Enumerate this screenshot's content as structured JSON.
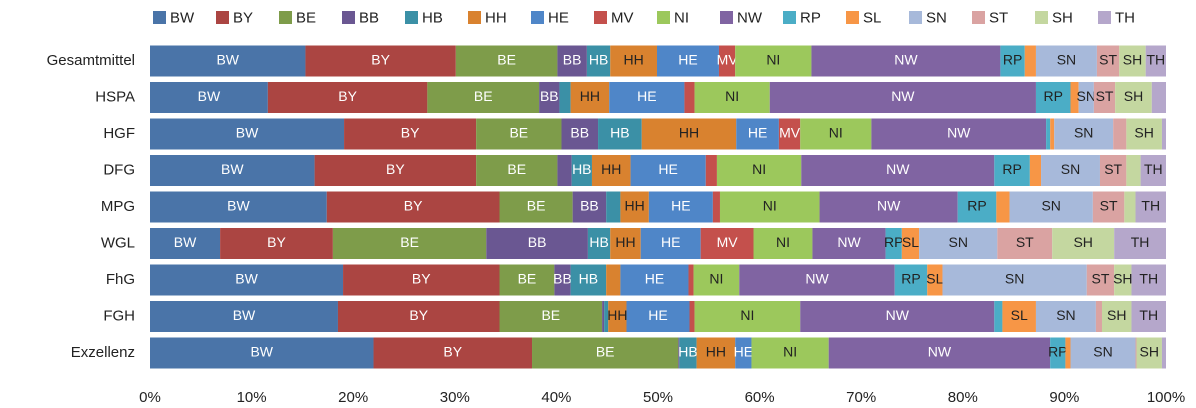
{
  "chart_data": {
    "type": "stacked_bar_horizontal",
    "categories": [
      "Gesamtmittel",
      "HSPA",
      "HGF",
      "DFG",
      "MPG",
      "WGL",
      "FhG",
      "FGH",
      "Exzellenz"
    ],
    "series": [
      {
        "name": "BW",
        "color": "#4a74a8",
        "values": [
          15.3,
          11.6,
          19.1,
          16.2,
          17.4,
          6.9,
          19.0,
          18.5,
          22.0
        ]
      },
      {
        "name": "BY",
        "color": "#ab4542",
        "values": [
          14.8,
          15.7,
          13.0,
          15.9,
          17.0,
          11.1,
          15.4,
          15.9,
          15.6
        ]
      },
      {
        "name": "BE",
        "color": "#7e9c4a",
        "values": [
          10.0,
          11.0,
          8.4,
          8.0,
          7.2,
          15.1,
          5.4,
          10.1,
          14.4
        ]
      },
      {
        "name": "BB",
        "color": "#6a5792",
        "values": [
          2.9,
          2.0,
          3.6,
          1.4,
          3.3,
          10.0,
          1.6,
          0.2,
          0.1
        ]
      },
      {
        "name": "HB",
        "color": "#3b90a6",
        "values": [
          2.3,
          1.1,
          4.3,
          2.0,
          1.4,
          2.2,
          3.5,
          0.4,
          1.7
        ]
      },
      {
        "name": "HH",
        "color": "#d9822f",
        "values": [
          4.6,
          3.8,
          9.3,
          3.8,
          2.8,
          3.0,
          1.4,
          1.8,
          3.8
        ]
      },
      {
        "name": "HE",
        "color": "#4f86c8",
        "values": [
          6.1,
          7.4,
          4.2,
          7.4,
          6.3,
          5.9,
          6.7,
          6.2,
          1.6
        ]
      },
      {
        "name": "MV",
        "color": "#c4504c",
        "values": [
          1.6,
          1.0,
          2.1,
          1.1,
          0.7,
          5.2,
          0.5,
          0.5,
          0.0
        ]
      },
      {
        "name": "NI",
        "color": "#9cc85c",
        "values": [
          7.5,
          7.4,
          7.0,
          8.3,
          9.8,
          5.8,
          4.5,
          10.4,
          7.6
        ]
      },
      {
        "name": "NW",
        "color": "#8064a2",
        "values": [
          18.6,
          26.2,
          17.2,
          19.0,
          13.6,
          7.2,
          15.3,
          19.1,
          21.8
        ]
      },
      {
        "name": "RP",
        "color": "#4badc6",
        "values": [
          2.4,
          3.4,
          0.4,
          3.5,
          3.8,
          1.6,
          3.2,
          0.8,
          1.5
        ]
      },
      {
        "name": "SL",
        "color": "#f79646",
        "values": [
          1.1,
          0.8,
          0.4,
          1.1,
          1.3,
          1.7,
          1.5,
          3.3,
          0.5
        ]
      },
      {
        "name": "SN",
        "color": "#a7b9da",
        "values": [
          6.0,
          1.5,
          5.8,
          5.8,
          8.2,
          7.7,
          14.2,
          5.9,
          6.4
        ]
      },
      {
        "name": "ST",
        "color": "#daa3a2",
        "values": [
          2.2,
          2.1,
          1.3,
          2.6,
          3.1,
          5.4,
          2.7,
          0.6,
          0.1
        ]
      },
      {
        "name": "SH",
        "color": "#c4d7a0",
        "values": [
          2.6,
          3.6,
          3.5,
          1.4,
          1.1,
          6.1,
          1.7,
          2.9,
          2.5
        ]
      },
      {
        "name": "TH",
        "color": "#b5a7cb",
        "values": [
          2.0,
          1.4,
          0.4,
          2.5,
          3.0,
          5.1,
          3.4,
          3.4,
          0.4
        ]
      }
    ],
    "xlim": [
      0,
      100
    ],
    "xticks": [
      {
        "value": 0,
        "label": "0%"
      },
      {
        "value": 10,
        "label": "10%"
      },
      {
        "value": 20,
        "label": "20%"
      },
      {
        "value": 30,
        "label": "30%"
      },
      {
        "value": 40,
        "label": "40%"
      },
      {
        "value": 50,
        "label": "50%"
      },
      {
        "value": 60,
        "label": "60%"
      },
      {
        "value": 70,
        "label": "70%"
      },
      {
        "value": 80,
        "label": "80%"
      },
      {
        "value": 90,
        "label": "90%"
      },
      {
        "value": 100,
        "label": "100%"
      }
    ],
    "legend": "top"
  }
}
